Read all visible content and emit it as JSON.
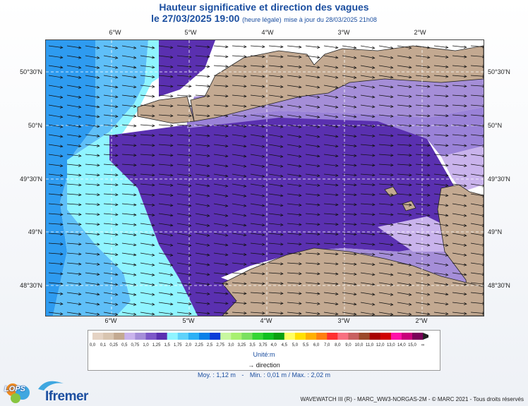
{
  "title": {
    "main": "Hauteur significative et direction des vagues",
    "date": "le 27/03/2025 19:00",
    "date_note": "(heure légale)",
    "update": "mise à jour du 28/03/2025 21h08"
  },
  "map": {
    "lon_ticks": [
      "6°W",
      "5°W",
      "4°W",
      "3°W",
      "2°W"
    ],
    "lat_ticks": [
      "50°30'N",
      "50°N",
      "49°30'N",
      "49°N",
      "48°30'N"
    ]
  },
  "legend": {
    "levels": [
      "0,0",
      "0,1",
      "0,25",
      "0,5",
      "0,75",
      "1,0",
      "1,25",
      "1,5",
      "1,75",
      "2,0",
      "2,25",
      "2,5",
      "2,75",
      "3,0",
      "3,25",
      "3,5",
      "3,75",
      "4,0",
      "4,5",
      "5,0",
      "5,5",
      "6,0",
      "7,0",
      "8,0",
      "9,0",
      "10,0",
      "11,0",
      "12,0",
      "13,0",
      "14,0",
      "15,0",
      "∞"
    ],
    "colors": [
      "#e5d3c4",
      "#d8c4b0",
      "#c3a991",
      "#c9b3ec",
      "#a58ed8",
      "#7d58c8",
      "#5a30b0",
      "#8ff4ff",
      "#5fd2fa",
      "#2cb0f5",
      "#0a80e8",
      "#0a3cd8",
      "#c8f7a0",
      "#a8f070",
      "#7be060",
      "#35d535",
      "#10c020",
      "#0aa010",
      "#ffff60",
      "#ffe000",
      "#ffb000",
      "#ff7f10",
      "#ff3030",
      "#f87080",
      "#c86060",
      "#9c4a2a",
      "#a80000",
      "#d00000",
      "#ff10a8",
      "#c8007a",
      "#7a0058"
    ],
    "unit": "Unité:m",
    "direction_label": "direction",
    "arrow_icon": "direction-arrow-icon"
  },
  "stats": {
    "moy": "Moy. : 1,12 m",
    "sep": "-",
    "minmax": "Min. : 0,01 m / Max. : 2,02 m"
  },
  "credits": "WAVEWATCH III (R) - MARC_WW3-NORGAS-2M - © MARC 2021 - Tous droits réservés",
  "logos": {
    "lops": "LOPS",
    "ifremer": "Ifremer"
  },
  "colors": {
    "title": "#1c4fa0",
    "land": "#c3a991",
    "arrow": "#111111"
  }
}
